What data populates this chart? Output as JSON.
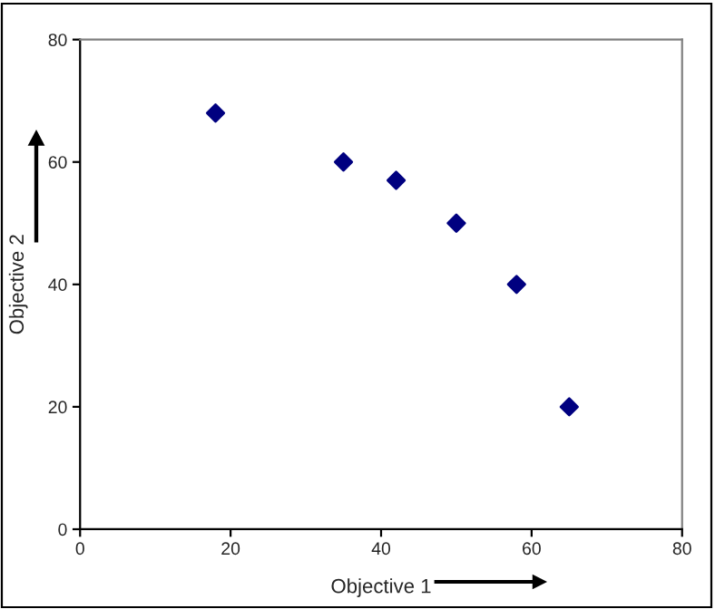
{
  "chart_data": {
    "type": "scatter",
    "xlabel": "Objective 1",
    "ylabel": "Objective 2",
    "x": [
      18,
      35,
      42,
      50,
      58,
      65
    ],
    "series": [
      {
        "color": "#000080",
        "values": [
          68,
          60,
          57,
          50,
          40,
          20
        ]
      }
    ],
    "xlim": [
      0,
      80
    ],
    "ylim": [
      0,
      80
    ],
    "xticks": [
      0,
      20,
      40,
      60,
      80
    ],
    "yticks": [
      0,
      20,
      40,
      60,
      80
    ],
    "marker": "diamond",
    "grid": false,
    "legend": false
  }
}
